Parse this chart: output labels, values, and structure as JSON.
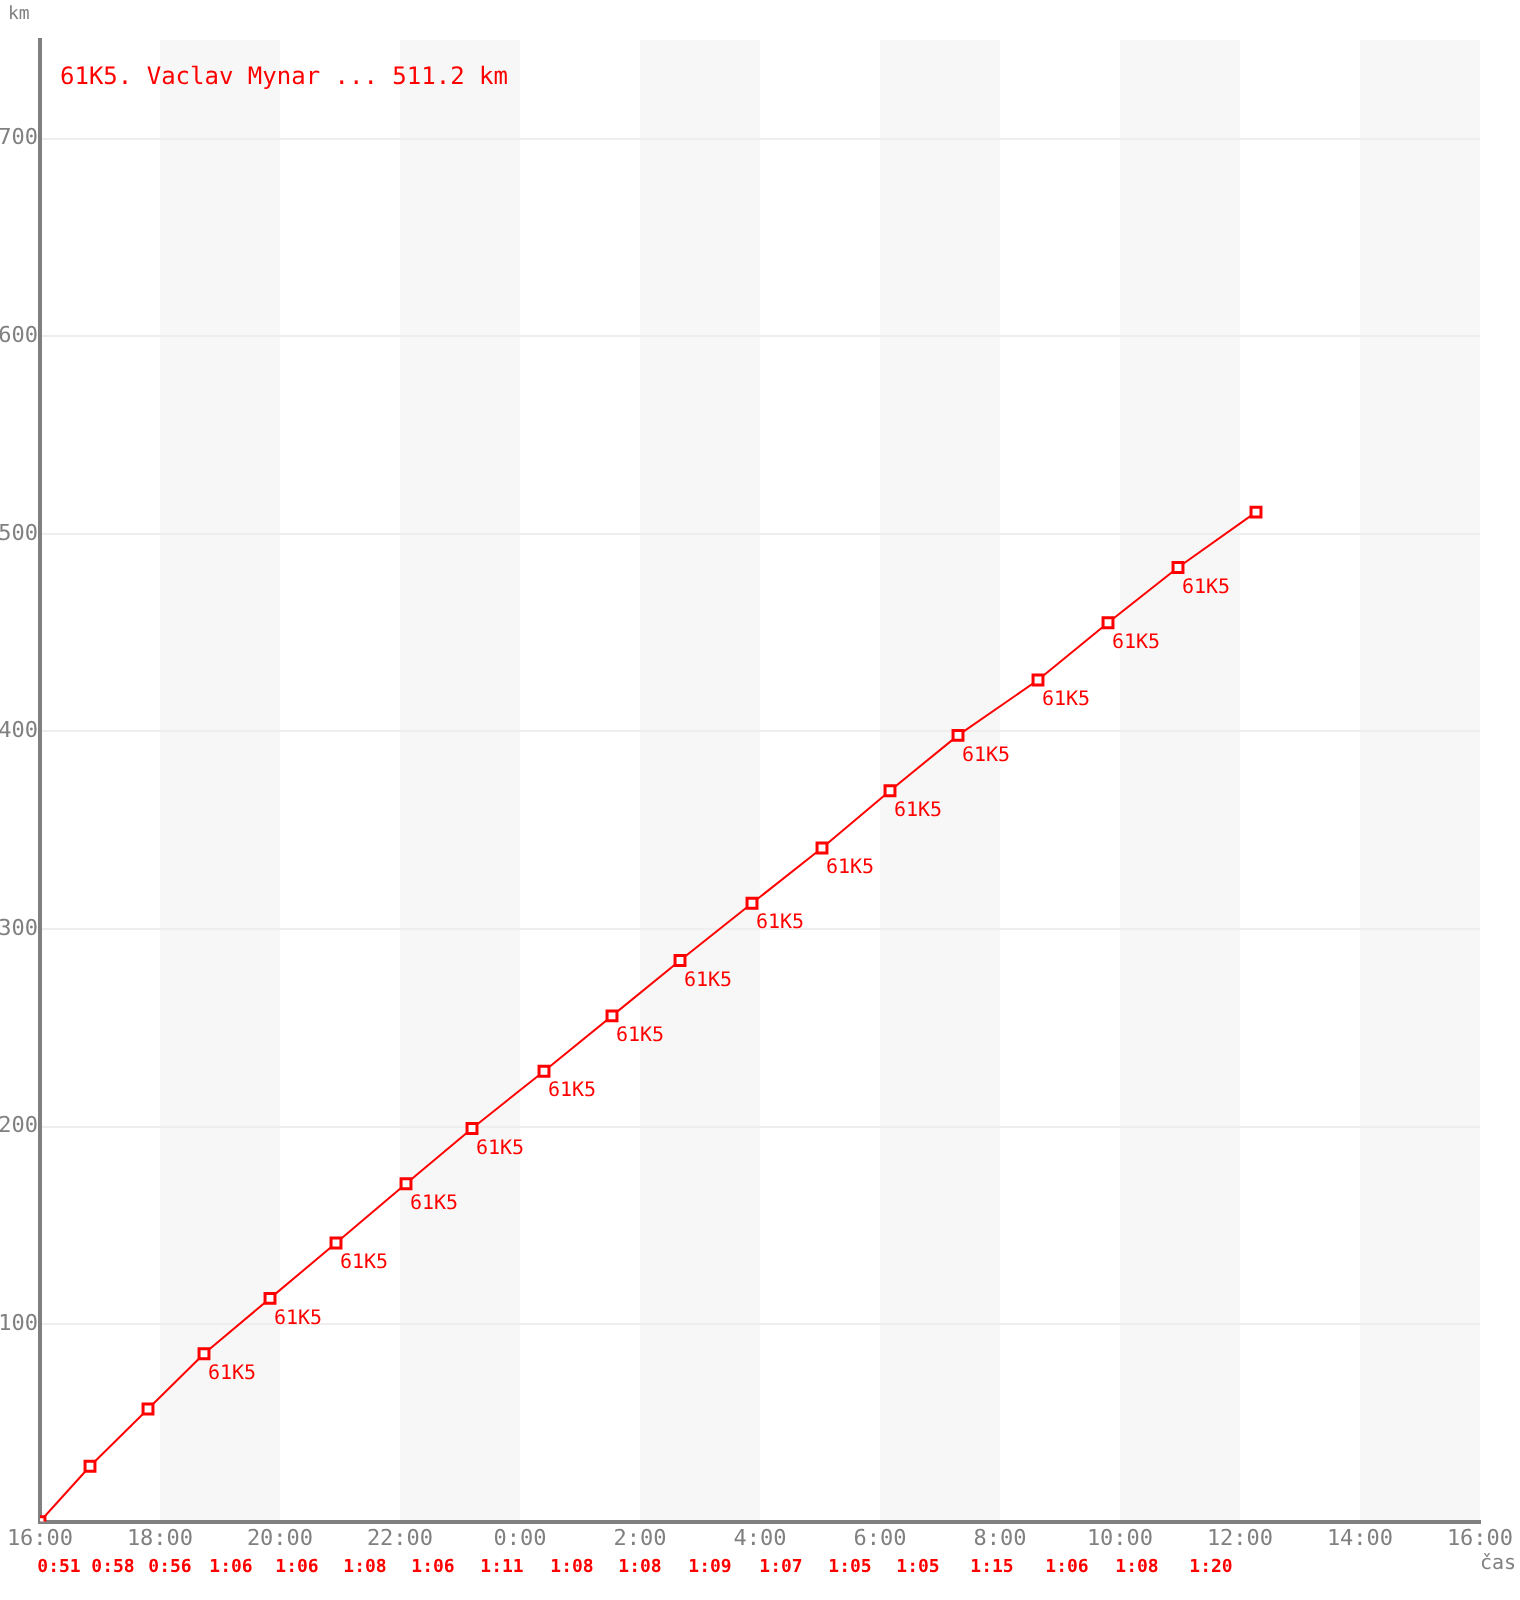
{
  "chart_data": {
    "type": "line",
    "title": "61K5. Vaclav Mynar ... 511.2 km",
    "xlabel": "čas",
    "ylabel": "km",
    "x": [
      "2000-01-01T16:00",
      "2000-01-01T16:50",
      "2000-01-01T17:48",
      "2000-01-01T18:44",
      "2000-01-01T19:50",
      "2000-01-01T20:56",
      "2000-01-01T22:06",
      "2000-01-01T23:12",
      "2000-01-02T00:24",
      "2000-01-02T01:32",
      "2000-01-02T02:40",
      "2000-01-02T03:52",
      "2000-01-02T05:02",
      "2000-01-02T06:10",
      "2000-01-02T07:18",
      "2000-01-02T08:38",
      "2000-01-02T09:48",
      "2000-01-02T10:58",
      "2000-01-02T12:16"
    ],
    "series": [
      {
        "color": "#ff0000",
        "values": [
          0,
          28,
          57,
          85,
          113,
          141,
          171,
          199,
          228,
          256,
          284,
          313,
          341,
          370,
          398,
          426,
          455,
          483,
          511
        ]
      }
    ],
    "marker": "square",
    "grid": "y",
    "xlim": [
      "2000-01-01T16:00",
      "2000-01-02T16:00"
    ],
    "xticks": [
      {
        "value": "2000-01-01T16:00",
        "label": "16:00"
      },
      {
        "value": "2000-01-01T18:00",
        "label": "18:00"
      },
      {
        "value": "2000-01-01T20:00",
        "label": "20:00"
      },
      {
        "value": "2000-01-01T22:00",
        "label": "22:00"
      },
      {
        "value": "2000-01-02T00:00",
        "label": "0:00"
      },
      {
        "value": "2000-01-02T02:00",
        "label": "2:00"
      },
      {
        "value": "2000-01-02T04:00",
        "label": "4:00"
      },
      {
        "value": "2000-01-02T06:00",
        "label": "6:00"
      },
      {
        "value": "2000-01-02T08:00",
        "label": "8:00"
      },
      {
        "value": "2000-01-02T10:00",
        "label": "10:00"
      },
      {
        "value": "2000-01-02T12:00",
        "label": "12:00"
      },
      {
        "value": "2000-01-02T14:00",
        "label": "14:00"
      },
      {
        "value": "2000-01-02T16:00",
        "label": "16:00"
      }
    ],
    "ylim": [
      0,
      750
    ],
    "yticks": [
      100,
      200,
      300,
      400,
      500,
      600,
      700
    ],
    "bands": [
      {
        "axis": "x",
        "from": "2000-01-01T18:00",
        "to": "2000-01-01T20:00",
        "color": "#f7f7f7"
      },
      {
        "axis": "x",
        "from": "2000-01-01T22:00",
        "to": "2000-01-02T00:00",
        "color": "#f7f7f7"
      },
      {
        "axis": "x",
        "from": "2000-01-02T02:00",
        "to": "2000-01-02T04:00",
        "color": "#f7f7f7"
      },
      {
        "axis": "x",
        "from": "2000-01-02T06:00",
        "to": "2000-01-02T08:00",
        "color": "#f7f7f7"
      },
      {
        "axis": "x",
        "from": "2000-01-02T10:00",
        "to": "2000-01-02T12:00",
        "color": "#f7f7f7"
      },
      {
        "axis": "x",
        "from": "2000-01-02T14:00",
        "to": "2000-01-02T16:00",
        "color": "#f7f7f7"
      }
    ],
    "annotations": [
      "0:51",
      "0:58",
      "0:56",
      "1:06",
      "1:06",
      "1:08",
      "1:06",
      "1:11",
      "1:08",
      "1:08",
      "1:09",
      "1:07",
      "1:05",
      "1:05",
      "1:15",
      "1:06",
      "1:08",
      "1:20",
      {
        "text": "61K5",
        "x": "2000-01-01T18:44",
        "y": 85
      },
      {
        "text": "61K5",
        "x": "2000-01-01T19:50",
        "y": 113
      },
      {
        "text": "61K5",
        "x": "2000-01-01T20:56",
        "y": 141
      },
      {
        "text": "61K5",
        "x": "2000-01-01T22:06",
        "y": 171
      },
      {
        "text": "61K5",
        "x": "2000-01-01T23:12",
        "y": 199
      },
      {
        "text": "61K5",
        "x": "2000-01-02T00:24",
        "y": 228
      },
      {
        "text": "61K5",
        "x": "2000-01-02T01:32",
        "y": 256
      },
      {
        "text": "61K5",
        "x": "2000-01-02T02:40",
        "y": 284
      },
      {
        "text": "61K5",
        "x": "2000-01-02T03:52",
        "y": 313
      },
      {
        "text": "61K5",
        "x": "2000-01-02T05:02",
        "y": 341
      },
      {
        "text": "61K5",
        "x": "2000-01-02T06:10",
        "y": 370
      },
      {
        "text": "61K5",
        "x": "2000-01-02T07:18",
        "y": 398
      },
      {
        "text": "61K5",
        "x": "2000-01-02T08:38",
        "y": 426
      },
      {
        "text": "61K5",
        "x": "2000-01-02T09:48",
        "y": 455
      },
      {
        "text": "61K5",
        "x": "2000-01-02T10:58",
        "y": 483
      }
    ]
  }
}
